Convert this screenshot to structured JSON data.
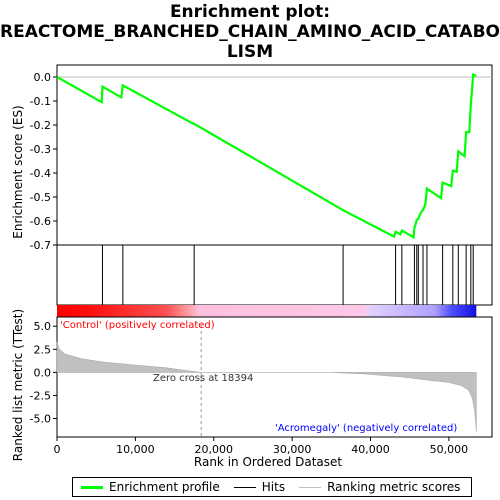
{
  "title_lines": [
    "Enrichment plot:",
    "REACTOME_BRANCHED_CHAIN_AMINO_ACID_CATABO",
    "LISM"
  ],
  "legend": {
    "items": [
      {
        "label": "Enrichment profile",
        "color": "#00ff00"
      },
      {
        "label": "Hits",
        "color": "#000000"
      },
      {
        "label": "Ranking metric scores",
        "color": "#c0c0c0"
      }
    ]
  },
  "chart_data": {
    "type": "line",
    "xlabel": "Rank in Ordered Dataset",
    "xlim": [
      0,
      55500
    ],
    "x_ticks": [
      0,
      10000,
      20000,
      30000,
      40000,
      50000
    ],
    "x_tick_labels": [
      "0",
      "10,000",
      "20,000",
      "30,000",
      "40,000",
      "50,000"
    ],
    "enrichment": {
      "ylabel": "Enrichment score (ES)",
      "ylim": [
        -0.7,
        0.05
      ],
      "y_ticks": [
        0.0,
        -0.1,
        -0.2,
        -0.3,
        -0.4,
        -0.5,
        -0.6,
        -0.7
      ],
      "y_tick_labels": [
        "0.0",
        "-0.1",
        "-0.2",
        "-0.3",
        "-0.4",
        "-0.5",
        "-0.6",
        "-0.7"
      ],
      "color": "#00ff00",
      "x": [
        0,
        5700,
        5800,
        8200,
        8400,
        17400,
        17500,
        36500,
        43000,
        43200,
        43800,
        44000,
        45500,
        45600,
        45900,
        46100,
        46500,
        46700,
        47000,
        47200,
        49000,
        49200,
        50300,
        50500,
        51000,
        51200,
        52000,
        52200,
        52600,
        52800,
        53100,
        53500
      ],
      "y": [
        0.0,
        -0.105,
        -0.04,
        -0.085,
        -0.035,
        -0.195,
        -0.195,
        -0.555,
        -0.665,
        -0.645,
        -0.655,
        -0.64,
        -0.668,
        -0.63,
        -0.595,
        -0.59,
        -0.56,
        -0.555,
        -0.53,
        -0.465,
        -0.505,
        -0.44,
        -0.455,
        -0.39,
        -0.395,
        -0.31,
        -0.33,
        -0.23,
        -0.23,
        -0.115,
        0.01,
        0.005
      ]
    },
    "hits": [
      5800,
      8400,
      17500,
      36500,
      43200,
      44000,
      45600,
      45900,
      46100,
      46700,
      47200,
      49200,
      50500,
      51200,
      52200,
      52800,
      53100
    ],
    "ranking": {
      "ylabel": "Ranked list metric (TTest)",
      "ylim": [
        -7.0,
        6.0
      ],
      "y_ticks": [
        5.0,
        2.5,
        0.0,
        -2.5,
        -5.0
      ],
      "y_tick_labels": [
        "5.0",
        "2.5",
        "0.0",
        "-2.5",
        "-5.0"
      ],
      "color": "#c0c0c0",
      "x": [
        0,
        300,
        1000,
        3000,
        6000,
        10000,
        14000,
        16000,
        18394,
        25000,
        35000,
        39000,
        44000,
        48000,
        50000,
        51500,
        52500,
        53000,
        53300,
        53500
      ],
      "y": [
        3.3,
        2.5,
        2.0,
        1.5,
        1.1,
        0.8,
        0.5,
        0.25,
        0.0,
        0.0,
        0.0,
        -0.15,
        -0.5,
        -0.9,
        -1.1,
        -1.4,
        -1.9,
        -2.8,
        -4.2,
        -6.5
      ]
    },
    "zero_cross_label": "Zero cross at 18394",
    "zero_cross_x": 18394,
    "positive_label": "'Control' (positively correlated)",
    "negative_label": "'Acromegaly' (negatively correlated)",
    "positive_color": "#ff0000",
    "negative_color": "#0000ff"
  }
}
